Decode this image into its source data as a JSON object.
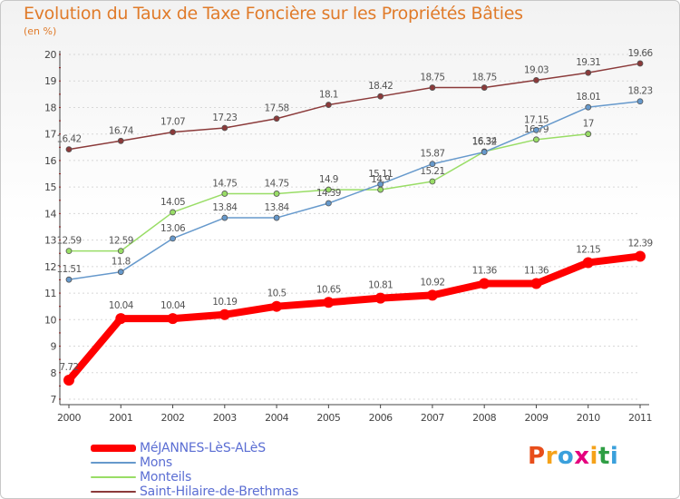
{
  "title": "Evolution du Taux de Taxe Foncière sur les Propriétés Bâties",
  "subtitle": "(en %)",
  "logo": {
    "text": "Proxiti",
    "colors": [
      "#e84e1b",
      "#f5a21a",
      "#3aa0dc",
      "#e5007e",
      "#f5a21a",
      "#2f9e44",
      "#3aa0dc"
    ]
  },
  "chart_data": {
    "type": "line",
    "x": [
      2000,
      2001,
      2002,
      2003,
      2004,
      2005,
      2006,
      2007,
      2008,
      2009,
      2010,
      2011
    ],
    "ylim": [
      7,
      20
    ],
    "yticks": [
      7,
      8,
      9,
      10,
      11,
      12,
      13,
      14,
      15,
      16,
      17,
      18,
      19,
      20
    ],
    "grid": "horizontal dashed",
    "series": [
      {
        "name": "MéJANNES-LèS-ALèS",
        "color": "#ff0000",
        "values": [
          7.72,
          10.04,
          10.04,
          10.19,
          10.5,
          10.65,
          10.81,
          10.92,
          11.36,
          11.36,
          12.15,
          12.39
        ],
        "labels": [
          "7.72",
          "10.04",
          "10.04",
          "10.19",
          "10.5",
          "10.65",
          "10.81",
          "10.92",
          "11.36",
          "11.36",
          "12.15",
          "12.39"
        ]
      },
      {
        "name": "Mons",
        "color": "#6699cc",
        "values": [
          11.51,
          11.8,
          13.06,
          13.84,
          13.84,
          14.39,
          15.11,
          15.87,
          16.32,
          17.15,
          18.01,
          18.23
        ],
        "labels": [
          "11.51",
          "11.8",
          "13.06",
          "13.84",
          "13.84",
          "14.39",
          "15.11",
          "15.87",
          "16.32",
          "17.15",
          "18.01",
          "18.23"
        ]
      },
      {
        "name": "Monteils",
        "color": "#99dd66",
        "values": [
          12.59,
          12.59,
          14.05,
          14.75,
          14.75,
          14.9,
          14.9,
          15.21,
          16.34,
          16.79,
          17.0,
          null
        ],
        "labels": [
          "12.59",
          "12.59",
          "14.05",
          "14.75",
          "14.75",
          "14.9",
          "14.9",
          "15.21",
          "16.34",
          "16.79",
          "17",
          ""
        ]
      },
      {
        "name": "Saint-Hilaire-de-Brethmas",
        "color": "#8b3a3a",
        "values": [
          16.42,
          16.74,
          17.07,
          17.23,
          17.58,
          18.1,
          18.42,
          18.75,
          18.75,
          19.03,
          19.31,
          19.66
        ],
        "labels": [
          "16.42",
          "16.74",
          "17.07",
          "17.23",
          "17.58",
          "18.1",
          "18.42",
          "18.75",
          "18.75",
          "19.03",
          "19.31",
          "19.66"
        ]
      }
    ]
  }
}
